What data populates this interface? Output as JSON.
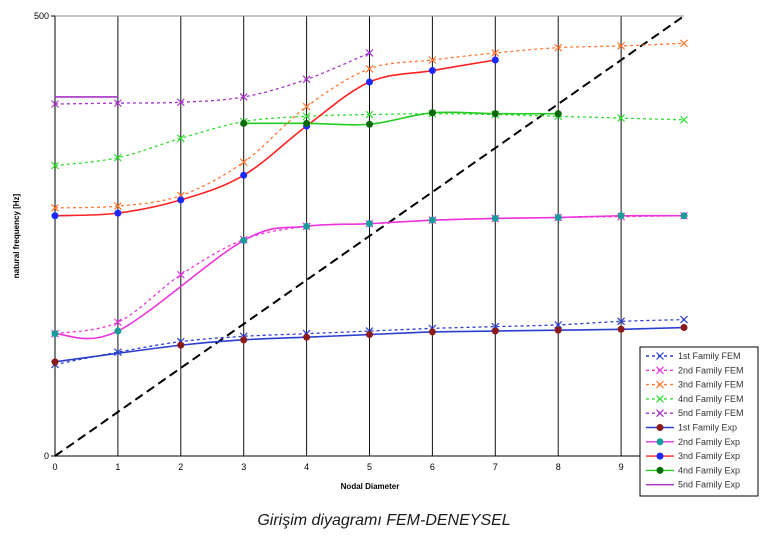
{
  "caption": "Girişim diyagramı FEM-DENEYSEL",
  "chart_data": {
    "type": "line",
    "xlabel": "Nodal Diameter",
    "ylabel": "natural frequency [Hz]",
    "xlim": [
      0,
      10
    ],
    "ylim": [
      0,
      500
    ],
    "xticks": [
      0,
      1,
      2,
      3,
      4,
      5,
      6,
      7,
      8,
      9
    ],
    "yticks": [
      0,
      500
    ],
    "grid": "vertical",
    "legend_position": "bottom-right",
    "diagonal": {
      "x": [
        0,
        10
      ],
      "y": [
        0,
        500
      ],
      "color": "#000000"
    },
    "series": [
      {
        "name": "1st Family FEM",
        "kind": "fem",
        "color": "#2b3fcf",
        "marker": "x",
        "x": [
          0,
          1,
          2,
          3,
          4,
          5,
          6,
          7,
          8,
          9,
          10
        ],
        "y": [
          104,
          118,
          130,
          136,
          139,
          142,
          145,
          147,
          149,
          153,
          155
        ]
      },
      {
        "name": "2nd Family FEM",
        "kind": "fem",
        "color": "#ee33dd",
        "marker": "x",
        "x": [
          0,
          1,
          2,
          3,
          4,
          5,
          6,
          7,
          8,
          9,
          10
        ],
        "y": [
          139,
          152,
          206,
          246,
          261,
          264,
          268,
          270,
          271,
          272,
          273
        ]
      },
      {
        "name": "3nd Family FEM",
        "kind": "fem",
        "color": "#ff7733",
        "marker": "x",
        "x": [
          0,
          1,
          2,
          3,
          4,
          5,
          6,
          7,
          8,
          9,
          10
        ],
        "y": [
          282,
          284,
          296,
          334,
          397,
          440,
          450,
          458,
          464,
          466,
          469
        ]
      },
      {
        "name": "4nd Family FEM",
        "kind": "fem",
        "color": "#33dd33",
        "marker": "x",
        "x": [
          0,
          1,
          2,
          3,
          4,
          5,
          6,
          7,
          8,
          9,
          10
        ],
        "y": [
          330,
          339,
          361,
          380,
          386,
          388,
          389,
          388,
          386,
          384,
          382
        ]
      },
      {
        "name": "5nd Family FEM",
        "kind": "fem",
        "color": "#a833c8",
        "marker": "x",
        "x": [
          0,
          1,
          2,
          3,
          4,
          5
        ],
        "y": [
          400,
          401,
          402,
          408,
          428,
          458
        ]
      },
      {
        "name": "1st Family Exp",
        "kind": "exp",
        "color": "#2b3fcf",
        "marker_color": "#8b1a1a",
        "x": [
          0,
          2,
          3,
          4,
          5,
          6,
          7,
          8,
          9,
          10
        ],
        "y": [
          107,
          126,
          132,
          135,
          138,
          141,
          142,
          143,
          144,
          146
        ]
      },
      {
        "name": "2nd Family Exp",
        "kind": "exp",
        "color": "#ee33dd",
        "marker_color": "#1a9c9c",
        "x": [
          0,
          1,
          3,
          4,
          5,
          6,
          7,
          8,
          9,
          10
        ],
        "y": [
          139,
          142,
          245,
          261,
          264,
          268,
          270,
          271,
          273,
          273
        ]
      },
      {
        "name": "3nd Family Exp",
        "kind": "exp",
        "color": "#ff2222",
        "marker_color": "#1a2aff",
        "x": [
          0,
          1,
          2,
          3,
          4,
          5,
          6,
          7
        ],
        "y": [
          273,
          276,
          291,
          319,
          375,
          425,
          438,
          450
        ]
      },
      {
        "name": "4nd Family Exp",
        "kind": "exp",
        "color": "#22cc22",
        "marker_color": "#0a6a0a",
        "x": [
          3,
          4,
          5,
          6,
          7,
          8
        ],
        "y": [
          378,
          378,
          377,
          390,
          389,
          389
        ]
      },
      {
        "name": "5nd Family Exp",
        "kind": "exp",
        "color": "#a833c8",
        "marker_color": "#a833c8",
        "no_marker": true,
        "x": [
          0,
          1
        ],
        "y": [
          408,
          408
        ]
      }
    ]
  }
}
